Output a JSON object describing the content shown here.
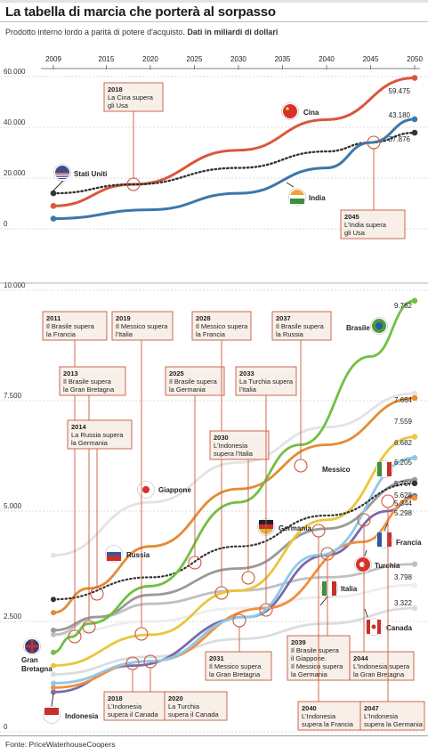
{
  "title": "La tabella di marcia che porterà al sorpasso",
  "subtitle_text": "Prodotto interno lordo a parità di potere d'acquisto.",
  "subtitle_bold": "Dati in miliardi di dollari",
  "source": "Fonte: PriceWaterhouseCoopers",
  "colors": {
    "china": "#d9573b",
    "usa": "#333333",
    "india": "#3c77a8",
    "brazil": "#6fc043",
    "mexico": "#e58a34",
    "japan": "#d9d9d9",
    "germany": "#9a9a9a",
    "russia": "#c0c0c0",
    "uk": "#8a8a8a",
    "indonesia": "#7a6aac",
    "canada": "#cfcfcf",
    "france": "#8ec9e8",
    "italy": "#e9c63a",
    "turkey": "#f28f3f",
    "annotation_bg": "#f7efe8",
    "annotation_border": "#c65a3f",
    "event_circle": "#cc5b3f"
  },
  "chart_data": [
    {
      "type": "line",
      "x_ticks": [
        "2009",
        "2015",
        "2020",
        "2025",
        "2030",
        "2035",
        "2040",
        "2045",
        "2050"
      ],
      "y_ticks": [
        "60.000",
        "40.000",
        "20.000",
        "0"
      ],
      "ylim": [
        0,
        60000
      ],
      "xlim": [
        2009,
        2050
      ],
      "series": [
        {
          "name": "Cina",
          "color": "#d9573b",
          "style": "solid",
          "x": [
            2009,
            2018,
            2030,
            2040,
            2050
          ],
          "values": [
            9000,
            17500,
            31000,
            43000,
            59475
          ],
          "end_label": "59.475"
        },
        {
          "name": "Stati Uniti",
          "color": "#333333",
          "style": "dotted",
          "x": [
            2009,
            2018,
            2030,
            2040,
            2045,
            2050
          ],
          "values": [
            14000,
            17500,
            24000,
            30500,
            34000,
            37876
          ],
          "end_label": "37.876"
        },
        {
          "name": "India",
          "color": "#3c77a8",
          "style": "solid",
          "x": [
            2009,
            2020,
            2030,
            2040,
            2045,
            2050
          ],
          "values": [
            4000,
            7500,
            14000,
            24000,
            34000,
            43180
          ],
          "end_label": "43.180"
        }
      ],
      "annotations": [
        {
          "year": "2018",
          "text": [
            "La Cina supera",
            "gli Usa"
          ]
        },
        {
          "year": "2045",
          "text": [
            "L'India supera",
            "gli Usa"
          ]
        }
      ]
    },
    {
      "type": "line",
      "y_ticks": [
        "10.000",
        "7.500",
        "5.000",
        "2.500",
        "0"
      ],
      "ylim": [
        0,
        10000
      ],
      "xlim": [
        2009,
        2050
      ],
      "series": [
        {
          "name": "Brasile",
          "color": "#6fc043",
          "x": [
            2009,
            2011,
            2013,
            2020,
            2030,
            2037,
            2045,
            2050
          ],
          "values": [
            1800,
            2150,
            2450,
            3300,
            5200,
            6500,
            8500,
            9762
          ],
          "end_label": "9.762"
        },
        {
          "name": "Giappone",
          "color": "#e3e3e3",
          "x": [
            2009,
            2020,
            2030,
            2040,
            2050
          ],
          "values": [
            4000,
            5200,
            6100,
            6900,
            7664
          ],
          "end_label": "7.664"
        },
        {
          "name": "Messico",
          "color": "#e58a34",
          "x": [
            2009,
            2013,
            2020,
            2030,
            2040,
            2050
          ],
          "values": [
            2700,
            3250,
            4200,
            5500,
            6500,
            7559
          ],
          "end_label": "7.559"
        },
        {
          "name": "Italia",
          "color": "#e9c63a",
          "x": [
            2009,
            2020,
            2030,
            2040,
            2050
          ],
          "values": [
            1500,
            2200,
            3200,
            4800,
            6682
          ],
          "end_label": "6.682"
        },
        {
          "name": "Francia",
          "color": "#8ec9e8",
          "x": [
            2009,
            2020,
            2031,
            2039,
            2050
          ],
          "values": [
            1100,
            1600,
            2600,
            4000,
            6205
          ],
          "end_label": "6.205"
        },
        {
          "name": "Germania",
          "color": "#9a9a9a",
          "x": [
            2009,
            2014,
            2020,
            2030,
            2040,
            2050
          ],
          "values": [
            2300,
            2600,
            3100,
            3700,
            4600,
            5707
          ],
          "end_label": "5.707"
        },
        {
          "name": "Stati Uniti (tratteggio)",
          "color": "#333333",
          "x": [
            2009,
            2020,
            2030,
            2040,
            2050
          ],
          "values": [
            3000,
            3500,
            4200,
            4900,
            5628
          ],
          "end_label": "5.628"
        },
        {
          "name": "Indonesia",
          "color": "#7a6aac",
          "x": [
            2009,
            2018,
            2031,
            2040,
            2047,
            2050
          ],
          "values": [
            900,
            1500,
            2600,
            4000,
            5000,
            5344
          ],
          "end_label": "5.344"
        },
        {
          "name": "Turchia",
          "color": "#f28f3f",
          "x": [
            2009,
            2020,
            2033,
            2044,
            2050
          ],
          "values": [
            1000,
            1600,
            2800,
            4300,
            5298
          ],
          "end_label": "5.298"
        },
        {
          "name": "Russia",
          "color": "#c0c0c0",
          "x": [
            2009,
            2014,
            2020,
            2030,
            2040,
            2050
          ],
          "values": [
            2200,
            2600,
            2900,
            3200,
            3500,
            3798
          ],
          "end_label": "3.798"
        },
        {
          "name": "Gran Bretagna",
          "color": "#ededed",
          "x": [
            2009,
            2020,
            2030,
            2040,
            2050
          ],
          "values": [
            2200,
            2500,
            2800,
            3050,
            3322
          ],
          "end_label": "3.322"
        },
        {
          "name": "Canada",
          "color": "#dcdcdc",
          "x": [
            2009,
            2020,
            2030,
            2040,
            2050
          ],
          "values": [
            1300,
            1700,
            2100,
            2450,
            2800
          ],
          "end_label": ""
        }
      ],
      "annotations": [
        {
          "year": "2011",
          "text": [
            "Il Brasile supera",
            "la Francia"
          ]
        },
        {
          "year": "2013",
          "text": [
            "Il Brasile supera",
            "la Gran Bretagna"
          ]
        },
        {
          "year": "2014",
          "text": [
            "La Russia supera",
            "la Germania"
          ]
        },
        {
          "year": "2019",
          "text": [
            "Il Messico supera",
            "l'Italia"
          ]
        },
        {
          "year": "2025",
          "text": [
            "Il Brasile supera",
            "la Germania"
          ]
        },
        {
          "year": "2028",
          "text": [
            "Il Messico supera",
            "la Francia"
          ]
        },
        {
          "year": "2030",
          "text": [
            "L'Indonesia",
            "supera l'Italia"
          ]
        },
        {
          "year": "2033",
          "text": [
            "La Turchia supera",
            "l'Italia"
          ]
        },
        {
          "year": "2037",
          "text": [
            "Il Brasile supera",
            "la Russia"
          ]
        },
        {
          "year": "2031",
          "text": [
            "Il Messico supera",
            "la Gran Bretagna"
          ]
        },
        {
          "year": "2039",
          "text": [
            "Il Brasile supera",
            "il Giappone.",
            "Il Messico supera",
            "la Germania"
          ]
        },
        {
          "year": "2044",
          "text": [
            "L'Indonesia supera",
            "la Gran Bretagna"
          ]
        },
        {
          "year": "2018",
          "text": [
            "L'Indonesia",
            "supera il Canada"
          ]
        },
        {
          "year": "2020",
          "text": [
            "La Turchia",
            "supera il Canada"
          ]
        },
        {
          "year": "2040",
          "text": [
            "L'Indonesia",
            "supera la Francia"
          ]
        },
        {
          "year": "2047",
          "text": [
            "L'Indonesia",
            "supera la Germania"
          ]
        }
      ]
    }
  ],
  "country_labels": {
    "cina": "Cina",
    "usa": "Stati Uniti",
    "india": "India",
    "brasile": "Brasile",
    "giappone": "Giappone",
    "messico": "Messico",
    "germania": "Germania",
    "russia": "Russia",
    "francia": "Francia",
    "turchia": "Turchia",
    "italia": "Italia",
    "canada": "Canada",
    "gran_bretagna": [
      "Gran",
      "Bretagna"
    ],
    "indonesia": "Indonesia"
  }
}
